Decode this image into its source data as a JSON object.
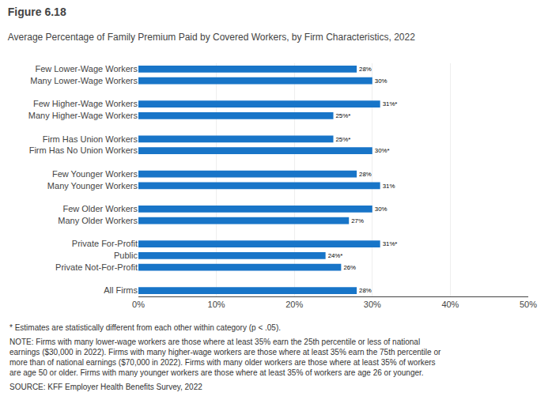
{
  "chart_data": {
    "type": "bar",
    "orientation": "horizontal",
    "title": "Figure 6.18",
    "subtitle": "Average Percentage of Family Premium Paid by Covered Workers, by Firm Characteristics, 2022",
    "categories": [
      "All Firms",
      null,
      "Private Not-For-Profit",
      "Public",
      "Private For-Profit",
      null,
      "Many Older Workers",
      "Few Older Workers",
      null,
      "Many Younger Workers",
      "Few Younger Workers",
      null,
      "Firm Has No Union Workers",
      "Firm Has Union Workers",
      null,
      "Many Higher-Wage Workers",
      "Few Higher-Wage Workers",
      null,
      "Many Lower-Wage Workers",
      "Few Lower-Wage Workers"
    ],
    "values": [
      28,
      null,
      26,
      24,
      31,
      null,
      27,
      30,
      null,
      31,
      28,
      null,
      30,
      25,
      null,
      25,
      31,
      null,
      30,
      28
    ],
    "value_labels": [
      "28%",
      null,
      "26%",
      "24%*",
      "31%*",
      null,
      "27%",
      "30%",
      null,
      "31%",
      "28%",
      null,
      "30%*",
      "25%*",
      null,
      "25%*",
      "31%*",
      null,
      "30%",
      "28%"
    ],
    "data_labels": true,
    "color": "#1875C8",
    "xlim": [
      0,
      50
    ],
    "xticks": [
      {
        "value": 0,
        "label": "0%"
      },
      {
        "value": 10,
        "label": "10%"
      },
      {
        "value": 20,
        "label": "20%"
      },
      {
        "value": 30,
        "label": "30%"
      },
      {
        "value": 40,
        "label": "40%"
      },
      {
        "value": 50,
        "label": "50%"
      }
    ],
    "grid": true,
    "annotations": [
      "* Estimates are statistically different from each other within category (p < .05).",
      "NOTE: Firms with many lower-wage workers are those where at least 35% earn the 25th percentile or less of national earnings ($30,000 in 2022). Firms with many higher-wage workers are those where at least 35% earn the 75th percentile or more than of national earnings ($70,000 in 2022). Firms with many older workers are those where at least 35% of workers are age 50 or older. Firms with many younger workers are those where at least 35% of workers are age 26 or younger.",
      "SOURCE: KFF Employer Health Benefits Survey, 2022"
    ]
  }
}
